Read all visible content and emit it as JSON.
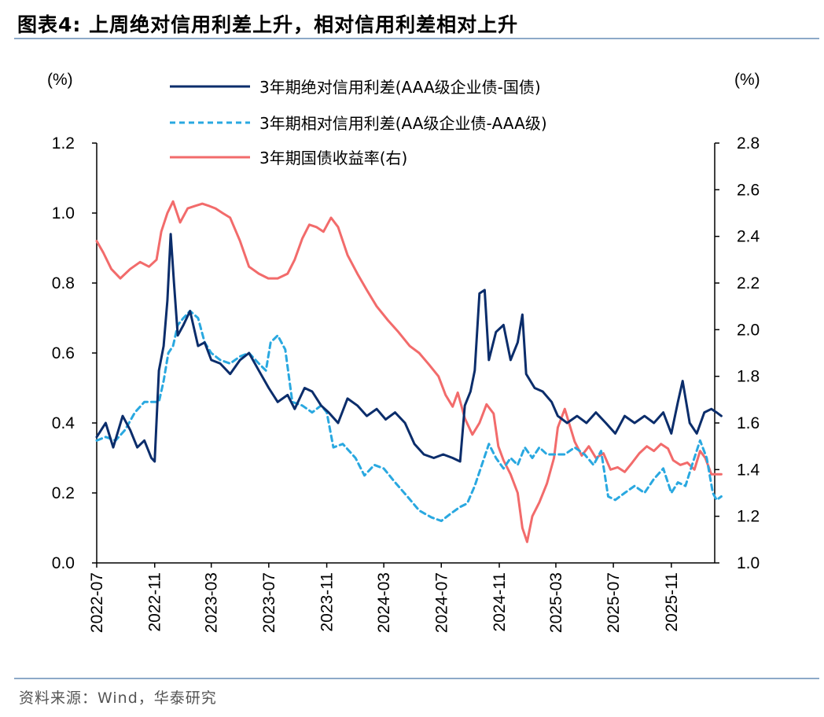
{
  "header": {
    "title": "图表4:   上周绝对信用利差上升，相对信用利差相对上升"
  },
  "footer": {
    "source": "资料来源：Wind，华泰研究"
  },
  "colors": {
    "abs": "#0B2D6B",
    "rel": "#29A8E0",
    "yield": "#F26B6B",
    "rule": "#8DA9C8"
  },
  "chart_data": {
    "type": "line",
    "xlabel": "",
    "left_axis": {
      "unit": "(%)",
      "ylim": [
        0.0,
        1.2
      ],
      "ticks": [
        "0.0",
        "0.2",
        "0.4",
        "0.6",
        "0.8",
        "1.0",
        "1.2"
      ]
    },
    "right_axis": {
      "unit": "(%)",
      "ylim": [
        1.0,
        2.8
      ],
      "ticks": [
        "1.0",
        "1.2",
        "1.4",
        "1.6",
        "1.8",
        "2.0",
        "2.2",
        "2.4",
        "2.6",
        "2.8"
      ]
    },
    "x_range": [
      "2022-07",
      "2026-02"
    ],
    "x_ticks": [
      "2022-07",
      "2022-11",
      "2023-03",
      "2023-07",
      "2023-11",
      "2024-03",
      "2024-07",
      "2024-11",
      "2025-03",
      "2025-07",
      "2025-11"
    ],
    "legend_position": "top",
    "grid": false,
    "series": [
      {
        "name": "3年期绝对信用利差(AAA级企业债-国债)",
        "axis": "left",
        "style": "solid",
        "points": [
          [
            "2022-07-01",
            0.36
          ],
          [
            "2022-07-20",
            0.4
          ],
          [
            "2022-08-05",
            0.33
          ],
          [
            "2022-08-25",
            0.42
          ],
          [
            "2022-09-10",
            0.38
          ],
          [
            "2022-09-25",
            0.33
          ],
          [
            "2022-10-10",
            0.35
          ],
          [
            "2022-10-25",
            0.3
          ],
          [
            "2022-11-01",
            0.29
          ],
          [
            "2022-11-10",
            0.55
          ],
          [
            "2022-11-20",
            0.62
          ],
          [
            "2022-11-28",
            0.75
          ],
          [
            "2022-12-05",
            0.94
          ],
          [
            "2022-12-12",
            0.8
          ],
          [
            "2022-12-20",
            0.65
          ],
          [
            "2023-01-01",
            0.68
          ],
          [
            "2023-01-15",
            0.72
          ],
          [
            "2023-02-01",
            0.62
          ],
          [
            "2023-02-15",
            0.63
          ],
          [
            "2023-03-01",
            0.58
          ],
          [
            "2023-03-20",
            0.57
          ],
          [
            "2023-04-10",
            0.54
          ],
          [
            "2023-05-01",
            0.58
          ],
          [
            "2023-05-20",
            0.6
          ],
          [
            "2023-06-10",
            0.55
          ],
          [
            "2023-07-01",
            0.5
          ],
          [
            "2023-07-20",
            0.46
          ],
          [
            "2023-08-10",
            0.48
          ],
          [
            "2023-08-25",
            0.44
          ],
          [
            "2023-09-15",
            0.5
          ],
          [
            "2023-10-01",
            0.49
          ],
          [
            "2023-10-20",
            0.45
          ],
          [
            "2023-11-05",
            0.43
          ],
          [
            "2023-11-25",
            0.4
          ],
          [
            "2023-12-15",
            0.47
          ],
          [
            "2024-01-05",
            0.45
          ],
          [
            "2024-01-25",
            0.42
          ],
          [
            "2024-02-15",
            0.44
          ],
          [
            "2024-03-05",
            0.41
          ],
          [
            "2024-03-25",
            0.43
          ],
          [
            "2024-04-15",
            0.4
          ],
          [
            "2024-05-05",
            0.34
          ],
          [
            "2024-05-25",
            0.31
          ],
          [
            "2024-06-15",
            0.3
          ],
          [
            "2024-07-05",
            0.31
          ],
          [
            "2024-07-25",
            0.3
          ],
          [
            "2024-08-10",
            0.29
          ],
          [
            "2024-08-20",
            0.45
          ],
          [
            "2024-09-01",
            0.49
          ],
          [
            "2024-09-10",
            0.55
          ],
          [
            "2024-09-20",
            0.77
          ],
          [
            "2024-10-01",
            0.78
          ],
          [
            "2024-10-10",
            0.58
          ],
          [
            "2024-10-25",
            0.66
          ],
          [
            "2024-11-10",
            0.68
          ],
          [
            "2024-11-25",
            0.58
          ],
          [
            "2024-12-10",
            0.63
          ],
          [
            "2024-12-20",
            0.71
          ],
          [
            "2024-12-28",
            0.54
          ],
          [
            "2025-01-15",
            0.5
          ],
          [
            "2025-02-01",
            0.49
          ],
          [
            "2025-02-20",
            0.46
          ],
          [
            "2025-03-05",
            0.42
          ],
          [
            "2025-03-25",
            0.4
          ],
          [
            "2025-04-15",
            0.42
          ],
          [
            "2025-05-05",
            0.4
          ],
          [
            "2025-05-25",
            0.43
          ],
          [
            "2025-06-15",
            0.4
          ],
          [
            "2025-07-05",
            0.37
          ],
          [
            "2025-07-25",
            0.42
          ],
          [
            "2025-08-15",
            0.4
          ],
          [
            "2025-09-05",
            0.42
          ],
          [
            "2025-09-25",
            0.4
          ],
          [
            "2025-10-15",
            0.43
          ],
          [
            "2025-11-01",
            0.37
          ],
          [
            "2025-11-15",
            0.46
          ],
          [
            "2025-11-25",
            0.52
          ],
          [
            "2025-12-10",
            0.4
          ],
          [
            "2025-12-25",
            0.37
          ],
          [
            "2026-01-10",
            0.43
          ],
          [
            "2026-01-25",
            0.44
          ],
          [
            "2026-02-05",
            0.43
          ],
          [
            "2026-02-15",
            0.42
          ]
        ]
      },
      {
        "name": "3年期相对信用利差(AA级企业债-AAA级)",
        "axis": "left",
        "style": "dashed",
        "points": [
          [
            "2022-07-01",
            0.35
          ],
          [
            "2022-07-20",
            0.36
          ],
          [
            "2022-08-10",
            0.35
          ],
          [
            "2022-08-30",
            0.38
          ],
          [
            "2022-09-20",
            0.43
          ],
          [
            "2022-10-10",
            0.46
          ],
          [
            "2022-10-30",
            0.46
          ],
          [
            "2022-11-10",
            0.46
          ],
          [
            "2022-11-20",
            0.52
          ],
          [
            "2022-11-30",
            0.6
          ],
          [
            "2022-12-10",
            0.62
          ],
          [
            "2022-12-20",
            0.68
          ],
          [
            "2023-01-01",
            0.7
          ],
          [
            "2023-01-15",
            0.72
          ],
          [
            "2023-02-01",
            0.7
          ],
          [
            "2023-02-15",
            0.63
          ],
          [
            "2023-03-01",
            0.6
          ],
          [
            "2023-03-20",
            0.58
          ],
          [
            "2023-04-10",
            0.57
          ],
          [
            "2023-05-01",
            0.59
          ],
          [
            "2023-05-20",
            0.6
          ],
          [
            "2023-06-10",
            0.57
          ],
          [
            "2023-06-25",
            0.55
          ],
          [
            "2023-07-05",
            0.63
          ],
          [
            "2023-07-20",
            0.65
          ],
          [
            "2023-08-05",
            0.61
          ],
          [
            "2023-08-20",
            0.46
          ],
          [
            "2023-09-10",
            0.45
          ],
          [
            "2023-10-01",
            0.43
          ],
          [
            "2023-10-20",
            0.45
          ],
          [
            "2023-11-01",
            0.43
          ],
          [
            "2023-11-15",
            0.33
          ],
          [
            "2023-12-05",
            0.34
          ],
          [
            "2024-01-01",
            0.3
          ],
          [
            "2024-01-20",
            0.25
          ],
          [
            "2024-02-10",
            0.28
          ],
          [
            "2024-03-01",
            0.27
          ],
          [
            "2024-03-25",
            0.23
          ],
          [
            "2024-04-20",
            0.19
          ],
          [
            "2024-05-15",
            0.15
          ],
          [
            "2024-06-10",
            0.13
          ],
          [
            "2024-07-01",
            0.12
          ],
          [
            "2024-07-20",
            0.14
          ],
          [
            "2024-08-10",
            0.16
          ],
          [
            "2024-08-25",
            0.17
          ],
          [
            "2024-09-10",
            0.22
          ],
          [
            "2024-09-25",
            0.28
          ],
          [
            "2024-10-10",
            0.34
          ],
          [
            "2024-10-25",
            0.3
          ],
          [
            "2024-11-10",
            0.27
          ],
          [
            "2024-11-25",
            0.3
          ],
          [
            "2024-12-10",
            0.28
          ],
          [
            "2024-12-25",
            0.33
          ],
          [
            "2025-01-10",
            0.3
          ],
          [
            "2025-01-25",
            0.33
          ],
          [
            "2025-02-10",
            0.31
          ],
          [
            "2025-03-01",
            0.31
          ],
          [
            "2025-03-20",
            0.31
          ],
          [
            "2025-04-10",
            0.33
          ],
          [
            "2025-05-01",
            0.31
          ],
          [
            "2025-05-20",
            0.28
          ],
          [
            "2025-06-05",
            0.32
          ],
          [
            "2025-06-20",
            0.19
          ],
          [
            "2025-07-05",
            0.18
          ],
          [
            "2025-07-25",
            0.2
          ],
          [
            "2025-08-15",
            0.22
          ],
          [
            "2025-09-05",
            0.2
          ],
          [
            "2025-09-25",
            0.24
          ],
          [
            "2025-10-15",
            0.27
          ],
          [
            "2025-11-01",
            0.2
          ],
          [
            "2025-11-15",
            0.23
          ],
          [
            "2025-12-01",
            0.22
          ],
          [
            "2025-12-15",
            0.28
          ],
          [
            "2026-01-01",
            0.35
          ],
          [
            "2026-01-15",
            0.3
          ],
          [
            "2026-01-28",
            0.2
          ],
          [
            "2026-02-05",
            0.18
          ],
          [
            "2026-02-15",
            0.19
          ]
        ]
      },
      {
        "name": "3年期国债收益率(右)",
        "axis": "right",
        "style": "solid",
        "points": [
          [
            "2022-07-01",
            2.38
          ],
          [
            "2022-07-15",
            2.33
          ],
          [
            "2022-08-01",
            2.26
          ],
          [
            "2022-08-20",
            2.22
          ],
          [
            "2022-09-10",
            2.26
          ],
          [
            "2022-10-01",
            2.29
          ],
          [
            "2022-10-20",
            2.27
          ],
          [
            "2022-11-05",
            2.3
          ],
          [
            "2022-11-15",
            2.42
          ],
          [
            "2022-11-28",
            2.5
          ],
          [
            "2022-12-10",
            2.55
          ],
          [
            "2022-12-25",
            2.46
          ],
          [
            "2023-01-10",
            2.52
          ],
          [
            "2023-01-25",
            2.53
          ],
          [
            "2023-02-10",
            2.54
          ],
          [
            "2023-02-25",
            2.53
          ],
          [
            "2023-03-10",
            2.52
          ],
          [
            "2023-03-25",
            2.5
          ],
          [
            "2023-04-10",
            2.48
          ],
          [
            "2023-05-01",
            2.38
          ],
          [
            "2023-05-20",
            2.27
          ],
          [
            "2023-06-10",
            2.24
          ],
          [
            "2023-06-30",
            2.22
          ],
          [
            "2023-07-20",
            2.22
          ],
          [
            "2023-08-10",
            2.24
          ],
          [
            "2023-08-25",
            2.3
          ],
          [
            "2023-09-10",
            2.39
          ],
          [
            "2023-09-25",
            2.45
          ],
          [
            "2023-10-10",
            2.44
          ],
          [
            "2023-10-25",
            2.42
          ],
          [
            "2023-11-10",
            2.48
          ],
          [
            "2023-11-25",
            2.44
          ],
          [
            "2023-12-15",
            2.32
          ],
          [
            "2024-01-05",
            2.24
          ],
          [
            "2024-01-25",
            2.17
          ],
          [
            "2024-02-15",
            2.1
          ],
          [
            "2024-03-10",
            2.04
          ],
          [
            "2024-04-01",
            1.99
          ],
          [
            "2024-04-25",
            1.93
          ],
          [
            "2024-05-15",
            1.9
          ],
          [
            "2024-06-05",
            1.85
          ],
          [
            "2024-06-25",
            1.8
          ],
          [
            "2024-07-10",
            1.72
          ],
          [
            "2024-07-25",
            1.67
          ],
          [
            "2024-08-05",
            1.73
          ],
          [
            "2024-08-20",
            1.62
          ],
          [
            "2024-09-05",
            1.55
          ],
          [
            "2024-09-20",
            1.6
          ],
          [
            "2024-10-05",
            1.68
          ],
          [
            "2024-10-20",
            1.64
          ],
          [
            "2024-10-30",
            1.5
          ],
          [
            "2024-11-10",
            1.44
          ],
          [
            "2024-11-25",
            1.38
          ],
          [
            "2024-12-10",
            1.3
          ],
          [
            "2024-12-20",
            1.15
          ],
          [
            "2024-12-30",
            1.09
          ],
          [
            "2025-01-10",
            1.2
          ],
          [
            "2025-01-25",
            1.26
          ],
          [
            "2025-02-10",
            1.34
          ],
          [
            "2025-02-25",
            1.45
          ],
          [
            "2025-03-05",
            1.58
          ],
          [
            "2025-03-20",
            1.66
          ],
          [
            "2025-04-10",
            1.52
          ],
          [
            "2025-04-25",
            1.46
          ],
          [
            "2025-05-10",
            1.5
          ],
          [
            "2025-05-25",
            1.45
          ],
          [
            "2025-06-10",
            1.47
          ],
          [
            "2025-06-25",
            1.4
          ],
          [
            "2025-07-10",
            1.41
          ],
          [
            "2025-07-25",
            1.39
          ],
          [
            "2025-08-10",
            1.43
          ],
          [
            "2025-08-25",
            1.47
          ],
          [
            "2025-09-10",
            1.5
          ],
          [
            "2025-09-25",
            1.48
          ],
          [
            "2025-10-10",
            1.51
          ],
          [
            "2025-10-25",
            1.49
          ],
          [
            "2025-11-05",
            1.44
          ],
          [
            "2025-11-20",
            1.42
          ],
          [
            "2025-12-05",
            1.43
          ],
          [
            "2025-12-20",
            1.4
          ],
          [
            "2026-01-01",
            1.48
          ],
          [
            "2026-01-12",
            1.45
          ],
          [
            "2026-01-25",
            1.38
          ],
          [
            "2026-02-05",
            1.38
          ],
          [
            "2026-02-15",
            1.38
          ]
        ]
      }
    ]
  }
}
